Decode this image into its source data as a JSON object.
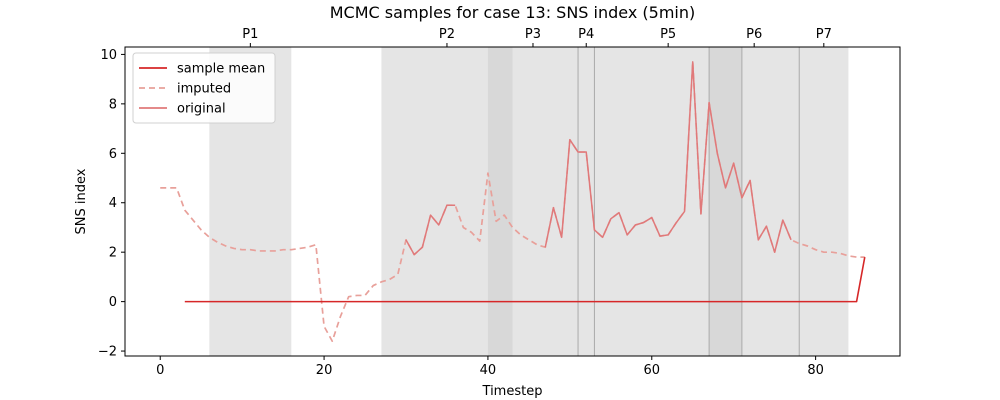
{
  "chart_data": {
    "type": "line",
    "title": "MCMC samples for case 13: SNS index (5min)",
    "xlabel": "Timestep",
    "ylabel": "SNS index",
    "xlim": [
      -4.3,
      90.3
    ],
    "ylim": [
      -2.2,
      10.3
    ],
    "xticks": [
      0,
      20,
      40,
      60,
      80
    ],
    "yticks": [
      -2,
      0,
      2,
      4,
      6,
      8,
      10
    ],
    "grid": false,
    "legend_position": "top-left",
    "colors": {
      "mean": "#d62728",
      "imputed": "#e8a09a",
      "original": "#e0797a",
      "span": "#cccccc",
      "overlap": "#b8b8b8",
      "vline": "#aaaaaa"
    },
    "periods": [
      {
        "label": "P1",
        "start": 6,
        "end": 16
      },
      {
        "label": "P2",
        "start": 27,
        "end": 43
      },
      {
        "label": "P3",
        "start": 40,
        "end": 51
      },
      {
        "label": "P4",
        "start": 51,
        "end": 53
      },
      {
        "label": "P5",
        "start": 53,
        "end": 71
      },
      {
        "label": "P6",
        "start": 67,
        "end": 78
      },
      {
        "label": "P7",
        "start": 78,
        "end": 84
      }
    ],
    "period_boundaries": [
      51,
      53,
      67,
      71,
      78
    ],
    "series": [
      {
        "name": "sample mean",
        "style": "solid",
        "x": [
          3,
          85,
          86
        ],
        "y": [
          0,
          0,
          1.8
        ]
      },
      {
        "name": "imputed",
        "style": "dashed",
        "x": [
          0,
          1,
          2,
          3,
          4,
          5,
          6,
          7,
          8,
          9,
          10,
          11,
          12,
          13,
          14,
          15,
          16,
          17,
          18,
          19,
          20,
          21,
          22,
          23,
          24,
          25,
          26,
          27,
          28,
          29,
          30,
          31,
          32,
          33,
          34,
          35,
          36,
          37,
          38,
          39,
          40,
          41,
          42,
          43,
          44,
          45,
          46,
          47,
          48,
          49,
          50,
          51,
          52,
          53,
          54,
          55,
          56,
          57,
          58,
          59,
          60,
          61,
          62,
          63,
          64,
          65,
          66,
          67,
          68,
          69,
          70,
          71,
          72,
          73,
          74,
          75,
          76,
          77,
          78,
          79,
          80,
          81,
          82,
          83,
          84,
          85,
          86
        ],
        "y": [
          4.6,
          4.6,
          4.6,
          3.7,
          3.3,
          2.9,
          2.6,
          2.4,
          2.25,
          2.15,
          2.1,
          2.1,
          2.05,
          2.05,
          2.05,
          2.1,
          2.1,
          2.15,
          2.2,
          2.3,
          -1.0,
          -1.6,
          -0.6,
          0.2,
          0.25,
          0.25,
          0.65,
          0.8,
          0.9,
          1.1,
          2.5,
          1.9,
          2.2,
          3.5,
          3.1,
          3.9,
          3.9,
          3.0,
          2.8,
          2.45,
          5.2,
          3.25,
          3.5,
          3.0,
          2.7,
          2.5,
          2.3,
          2.2,
          3.8,
          2.6,
          6.55,
          6.05,
          6.05,
          2.9,
          2.6,
          3.35,
          3.6,
          2.7,
          3.1,
          3.2,
          3.4,
          2.65,
          2.7,
          3.2,
          3.65,
          9.7,
          3.55,
          8.05,
          6.0,
          4.6,
          5.6,
          4.2,
          4.9,
          2.5,
          3.05,
          2.0,
          3.3,
          2.5,
          2.35,
          2.25,
          2.1,
          2.0,
          2.0,
          1.95,
          1.85,
          1.8,
          1.8
        ]
      },
      {
        "name": "original",
        "style": "solid",
        "x": [
          30,
          31,
          32,
          33,
          34,
          35,
          36,
          null,
          47,
          48,
          49,
          50,
          51,
          52,
          53,
          54,
          55,
          56,
          57,
          58,
          59,
          60,
          61,
          62,
          63,
          64,
          65,
          66,
          67,
          68,
          69,
          70,
          71,
          72,
          73,
          74,
          75,
          76,
          77
        ],
        "y": [
          2.5,
          1.9,
          2.2,
          3.5,
          3.1,
          3.9,
          3.9,
          null,
          2.2,
          3.8,
          2.6,
          6.55,
          6.05,
          6.05,
          2.9,
          2.6,
          3.35,
          3.6,
          2.7,
          3.1,
          3.2,
          3.4,
          2.65,
          2.7,
          3.2,
          3.65,
          9.7,
          3.55,
          8.05,
          6.0,
          4.6,
          5.6,
          4.2,
          4.9,
          2.5,
          3.05,
          2.0,
          3.3,
          2.5
        ]
      }
    ]
  }
}
